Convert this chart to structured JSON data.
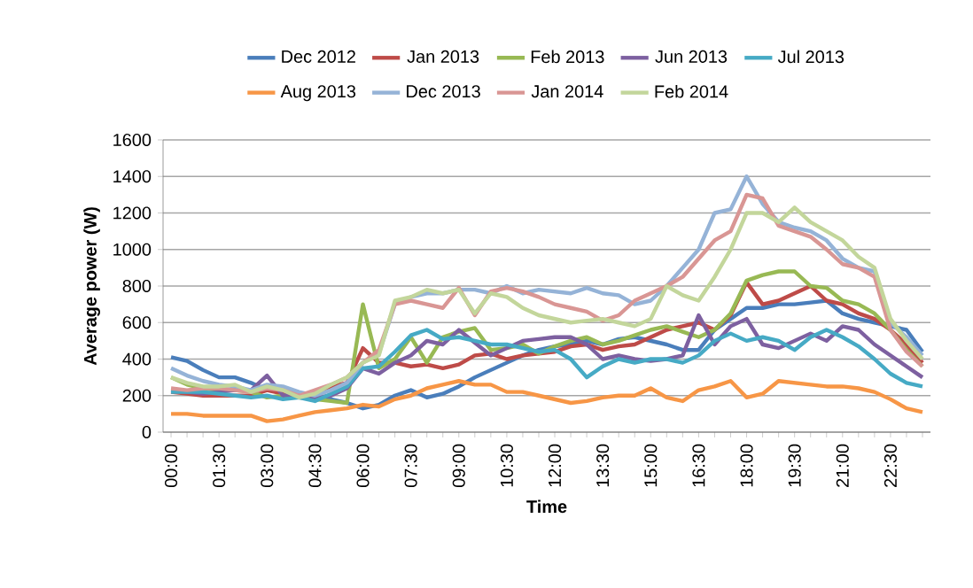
{
  "chart_data": {
    "type": "line",
    "xlabel": "Time",
    "ylabel": "Average power (W)",
    "ylim": [
      0,
      1600
    ],
    "yticks": [
      0,
      200,
      400,
      600,
      800,
      1000,
      1200,
      1400,
      1600
    ],
    "grid": "y",
    "legend": "top",
    "marker": "none",
    "line_style": "solid",
    "categories": [
      "00:00",
      null,
      null,
      "01:30",
      null,
      null,
      "03:00",
      null,
      null,
      "04:30",
      null,
      null,
      "06:00",
      null,
      null,
      "07:30",
      null,
      null,
      "09:00",
      null,
      null,
      "10:30",
      null,
      null,
      "12:00",
      null,
      null,
      "13:30",
      null,
      null,
      "15:00",
      null,
      null,
      "16:30",
      null,
      null,
      "18:00",
      null,
      null,
      "19:30",
      null,
      null,
      "21:00",
      null,
      null,
      "22:30",
      null,
      null
    ],
    "series": [
      {
        "name": "Dec 2012",
        "color": "#4a7ebb",
        "values": [
          410,
          390,
          340,
          300,
          300,
          270,
          230,
          220,
          200,
          190,
          180,
          160,
          130,
          150,
          200,
          230,
          190,
          210,
          250,
          300,
          340,
          380,
          420,
          450,
          470,
          480,
          500,
          480,
          510,
          520,
          500,
          480,
          450,
          450,
          560,
          620,
          680,
          680,
          700,
          700,
          710,
          720,
          650,
          620,
          600,
          580,
          560,
          440
        ]
      },
      {
        "name": "Jan 2013",
        "color": "#be4b48",
        "values": [
          220,
          210,
          200,
          200,
          200,
          200,
          230,
          210,
          210,
          200,
          250,
          270,
          460,
          380,
          380,
          360,
          370,
          350,
          370,
          420,
          430,
          400,
          420,
          430,
          440,
          470,
          480,
          450,
          470,
          480,
          520,
          560,
          580,
          600,
          560,
          640,
          820,
          700,
          720,
          760,
          800,
          720,
          700,
          650,
          620,
          560,
          480,
          380
        ]
      },
      {
        "name": "Feb 2013",
        "color": "#98b954",
        "values": [
          300,
          260,
          240,
          230,
          230,
          220,
          190,
          200,
          190,
          180,
          170,
          160,
          700,
          350,
          400,
          520,
          380,
          520,
          550,
          570,
          450,
          460,
          480,
          430,
          470,
          500,
          520,
          480,
          500,
          530,
          560,
          580,
          550,
          520,
          560,
          650,
          830,
          860,
          880,
          880,
          800,
          790,
          720,
          700,
          650,
          560,
          450,
          360
        ]
      },
      {
        "name": "Jun 2013",
        "color": "#7d60a0",
        "values": [
          230,
          220,
          210,
          220,
          230,
          230,
          310,
          200,
          210,
          190,
          200,
          240,
          350,
          320,
          380,
          420,
          500,
          480,
          560,
          490,
          420,
          460,
          500,
          510,
          520,
          520,
          480,
          400,
          420,
          400,
          390,
          400,
          420,
          640,
          480,
          580,
          620,
          480,
          460,
          500,
          540,
          500,
          580,
          560,
          480,
          420,
          360,
          300
        ]
      },
      {
        "name": "Jul 2013",
        "color": "#46aac5",
        "values": [
          220,
          220,
          220,
          210,
          200,
          190,
          200,
          180,
          190,
          170,
          210,
          250,
          350,
          360,
          440,
          530,
          560,
          510,
          520,
          500,
          480,
          480,
          460,
          440,
          450,
          400,
          300,
          360,
          400,
          380,
          400,
          400,
          380,
          420,
          500,
          540,
          500,
          520,
          500,
          450,
          520,
          560,
          520,
          470,
          400,
          320,
          270,
          250
        ]
      },
      {
        "name": "Aug 2013",
        "color": "#f79646",
        "values": [
          100,
          100,
          90,
          90,
          90,
          90,
          60,
          70,
          90,
          110,
          120,
          130,
          150,
          140,
          180,
          200,
          240,
          260,
          280,
          260,
          260,
          220,
          220,
          200,
          180,
          160,
          170,
          190,
          200,
          200,
          240,
          190,
          170,
          230,
          250,
          280,
          190,
          210,
          280,
          270,
          260,
          250,
          250,
          240,
          220,
          180,
          130,
          110
        ]
      },
      {
        "name": "Dec 2013",
        "color": "#95b3d7",
        "values": [
          350,
          310,
          280,
          260,
          250,
          230,
          260,
          250,
          220,
          200,
          230,
          270,
          380,
          430,
          700,
          740,
          760,
          760,
          780,
          780,
          760,
          800,
          760,
          780,
          770,
          760,
          790,
          760,
          750,
          700,
          720,
          800,
          900,
          1000,
          1200,
          1220,
          1400,
          1250,
          1150,
          1120,
          1100,
          1050,
          950,
          900,
          880,
          600,
          520,
          420
        ]
      },
      {
        "name": "Jan 2014",
        "color": "#d99694",
        "values": [
          240,
          230,
          240,
          240,
          230,
          220,
          240,
          230,
          200,
          230,
          260,
          300,
          380,
          450,
          700,
          720,
          700,
          680,
          790,
          640,
          770,
          790,
          770,
          740,
          700,
          680,
          660,
          610,
          640,
          720,
          760,
          800,
          850,
          950,
          1050,
          1100,
          1300,
          1280,
          1130,
          1100,
          1070,
          1000,
          920,
          900,
          850,
          560,
          440,
          360
        ]
      },
      {
        "name": "Feb 2014",
        "color": "#c3d69b",
        "values": [
          300,
          270,
          250,
          250,
          260,
          220,
          250,
          230,
          190,
          210,
          260,
          300,
          380,
          420,
          720,
          740,
          780,
          760,
          780,
          650,
          760,
          740,
          680,
          640,
          620,
          600,
          610,
          620,
          600,
          580,
          620,
          800,
          750,
          720,
          850,
          1000,
          1200,
          1200,
          1150,
          1230,
          1150,
          1100,
          1050,
          960,
          900,
          620,
          500,
          400
        ]
      }
    ]
  }
}
